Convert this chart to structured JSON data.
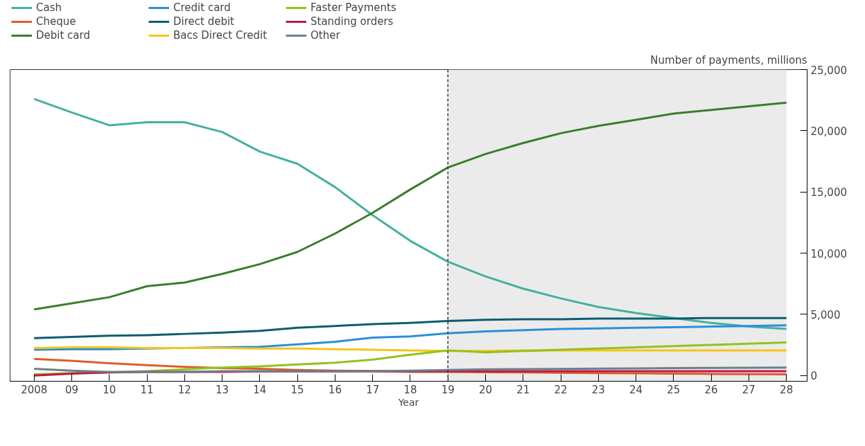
{
  "chart_data": {
    "type": "line",
    "xlabel": "Year",
    "ylabel": "Number of payments, millions",
    "x": [
      2008,
      2009,
      2010,
      2011,
      2012,
      2013,
      2014,
      2015,
      2016,
      2017,
      2018,
      2019,
      2020,
      2021,
      2022,
      2023,
      2024,
      2025,
      2026,
      2027,
      2028
    ],
    "xlim": [
      2007.36,
      2028.55
    ],
    "ylim": [
      -470,
      25000
    ],
    "xticks": [
      {
        "value": 2008,
        "label": "2008"
      },
      {
        "value": 2009,
        "label": "09"
      },
      {
        "value": 2010,
        "label": "10"
      },
      {
        "value": 2011,
        "label": "11"
      },
      {
        "value": 2012,
        "label": "12"
      },
      {
        "value": 2013,
        "label": "13"
      },
      {
        "value": 2014,
        "label": "14"
      },
      {
        "value": 2015,
        "label": "15"
      },
      {
        "value": 2016,
        "label": "16"
      },
      {
        "value": 2017,
        "label": "17"
      },
      {
        "value": 2018,
        "label": "18"
      },
      {
        "value": 2019,
        "label": "19"
      },
      {
        "value": 2020,
        "label": "20"
      },
      {
        "value": 2021,
        "label": "21"
      },
      {
        "value": 2022,
        "label": "22"
      },
      {
        "value": 2023,
        "label": "23"
      },
      {
        "value": 2024,
        "label": "24"
      },
      {
        "value": 2025,
        "label": "25"
      },
      {
        "value": 2026,
        "label": "26"
      },
      {
        "value": 2027,
        "label": "27"
      },
      {
        "value": 2028,
        "label": "28"
      }
    ],
    "yticks": [
      {
        "value": 0,
        "label": "0"
      },
      {
        "value": 5000,
        "label": "5,000"
      },
      {
        "value": 10000,
        "label": "10,000"
      },
      {
        "value": 15000,
        "label": "15,000"
      },
      {
        "value": 20000,
        "label": "20,000"
      },
      {
        "value": 25000,
        "label": "25,000"
      }
    ],
    "grid": false,
    "legend": "top left",
    "marker": "none",
    "line_style": "solid",
    "ref_lines": [
      {
        "axis": "x",
        "value": 2019,
        "line_style": "dashed",
        "color": "#333333"
      }
    ],
    "bands": [
      {
        "axis": "x",
        "from": 2019,
        "to": 2028,
        "color": "#ebebeb"
      }
    ],
    "series": [
      {
        "name": "Cash",
        "color": "#45b0a0",
        "values": [
          22600,
          21500,
          20450,
          20700,
          20700,
          19900,
          18300,
          17300,
          15400,
          13100,
          11000,
          9300,
          8100,
          7100,
          6300,
          5600,
          5100,
          4700,
          4300,
          4000,
          3800
        ]
      },
      {
        "name": "Cheque",
        "color": "#d95f2b",
        "values": [
          1350,
          1200,
          1000,
          850,
          700,
          600,
          550,
          450,
          400,
          350,
          300,
          300,
          270,
          250,
          230,
          200,
          180,
          150,
          130,
          110,
          100
        ]
      },
      {
        "name": "Debit card",
        "color": "#3a7d2c",
        "values": [
          5400,
          5900,
          6400,
          7300,
          7600,
          8300,
          9100,
          10100,
          11600,
          13300,
          15200,
          17000,
          18100,
          19000,
          19800,
          20400,
          20900,
          21400,
          21700,
          22000,
          22300
        ]
      },
      {
        "name": "Credit card",
        "color": "#2b8fd6",
        "values": [
          2100,
          2150,
          2150,
          2200,
          2250,
          2300,
          2350,
          2550,
          2750,
          3100,
          3200,
          3450,
          3600,
          3700,
          3800,
          3850,
          3900,
          3950,
          4000,
          4050,
          4100
        ]
      },
      {
        "name": "Direct debit",
        "color": "#0d5c6e",
        "values": [
          3050,
          3150,
          3250,
          3300,
          3400,
          3500,
          3650,
          3900,
          4050,
          4200,
          4300,
          4450,
          4550,
          4600,
          4600,
          4650,
          4650,
          4650,
          4700,
          4700,
          4700
        ]
      },
      {
        "name": "Bacs Direct Credit",
        "color": "#f5c518",
        "values": [
          2250,
          2300,
          2300,
          2250,
          2250,
          2250,
          2200,
          2200,
          2150,
          2100,
          2050,
          2000,
          2000,
          2050,
          2050,
          2050,
          2050,
          2050,
          2050,
          2050,
          2050
        ]
      },
      {
        "name": "Faster Payments",
        "color": "#94c11f",
        "values": [
          100,
          200,
          250,
          350,
          500,
          650,
          750,
          900,
          1050,
          1300,
          1700,
          2050,
          1900,
          2000,
          2100,
          2200,
          2300,
          2400,
          2500,
          2600,
          2700
        ]
      },
      {
        "name": "Standing orders",
        "color": "#c0174a",
        "values": [
          0,
          150,
          250,
          300,
          300,
          300,
          330,
          330,
          330,
          350,
          350,
          350,
          350,
          350,
          350,
          350,
          350,
          350,
          350,
          350,
          350
        ]
      },
      {
        "name": "Other",
        "color": "#6b7f8c",
        "values": [
          550,
          400,
          300,
          300,
          300,
          350,
          350,
          350,
          350,
          350,
          400,
          450,
          500,
          520,
          540,
          560,
          580,
          600,
          620,
          640,
          650
        ]
      }
    ]
  }
}
